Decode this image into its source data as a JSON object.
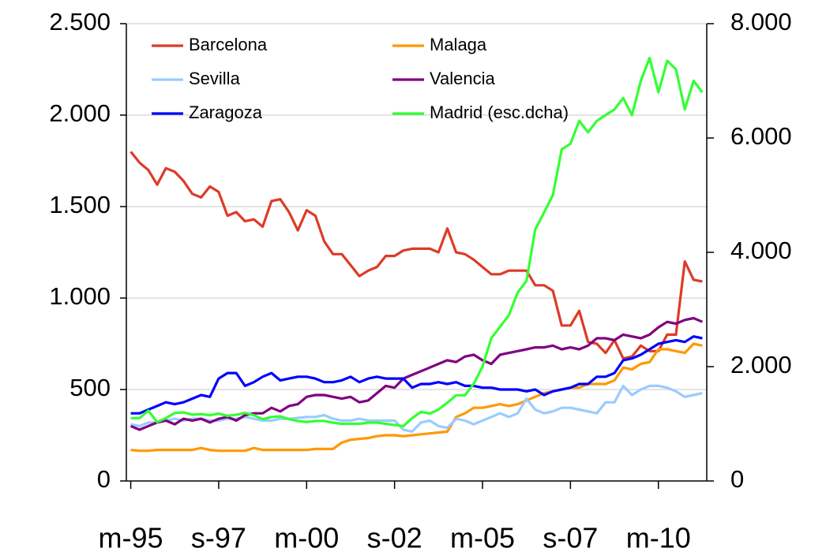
{
  "chart_data": {
    "type": "line",
    "categories": [
      "m-95",
      null,
      null,
      null,
      null,
      null,
      null,
      null,
      null,
      null,
      "s-97",
      null,
      null,
      null,
      null,
      null,
      null,
      null,
      null,
      null,
      "m-00",
      null,
      null,
      null,
      null,
      null,
      null,
      null,
      null,
      null,
      "s-02",
      null,
      null,
      null,
      null,
      null,
      null,
      null,
      null,
      null,
      "m-05",
      null,
      null,
      null,
      null,
      null,
      null,
      null,
      null,
      null,
      "s-07",
      null,
      null,
      null,
      null,
      null,
      null,
      null,
      null,
      null,
      "m-10",
      null,
      null,
      null,
      null,
      null
    ],
    "series": [
      {
        "name": "Barcelona",
        "color": "#dd3b26",
        "values": [
          1800,
          1740,
          1700,
          1620,
          1710,
          1690,
          1640,
          1570,
          1550,
          1610,
          1580,
          1450,
          1470,
          1420,
          1430,
          1390,
          1530,
          1540,
          1470,
          1370,
          1480,
          1450,
          1310,
          1240,
          1240,
          1180,
          1120,
          1150,
          1170,
          1230,
          1230,
          1260,
          1270,
          1270,
          1270,
          1250,
          1380,
          1250,
          1240,
          1210,
          1170,
          1130,
          1130,
          1150,
          1150,
          1150,
          1070,
          1070,
          1040,
          850,
          850,
          930,
          760,
          750,
          700,
          770,
          670,
          680,
          740,
          710,
          710,
          800,
          800,
          1200,
          1100,
          1090
        ]
      },
      {
        "name": "Malaga",
        "color": "#ff9900",
        "values": [
          170,
          165,
          165,
          170,
          170,
          170,
          170,
          170,
          180,
          170,
          165,
          165,
          165,
          165,
          180,
          170,
          170,
          170,
          170,
          170,
          170,
          175,
          175,
          175,
          210,
          225,
          230,
          235,
          245,
          250,
          250,
          245,
          250,
          255,
          260,
          265,
          270,
          350,
          370,
          400,
          400,
          410,
          420,
          410,
          420,
          440,
          460,
          480,
          490,
          500,
          510,
          510,
          530,
          530,
          530,
          550,
          620,
          610,
          640,
          650,
          720,
          720,
          710,
          700,
          750,
          740
        ]
      },
      {
        "name": "Sevilla",
        "color": "#99ccff",
        "values": [
          310,
          300,
          320,
          320,
          330,
          340,
          330,
          340,
          340,
          330,
          330,
          340,
          340,
          350,
          340,
          330,
          330,
          340,
          340,
          345,
          350,
          350,
          360,
          340,
          330,
          330,
          340,
          330,
          330,
          330,
          330,
          280,
          270,
          320,
          330,
          300,
          290,
          340,
          330,
          310,
          330,
          350,
          370,
          350,
          370,
          450,
          390,
          370,
          380,
          400,
          400,
          390,
          380,
          370,
          430,
          430,
          520,
          470,
          500,
          520,
          520,
          510,
          490,
          460,
          470,
          480
        ]
      },
      {
        "name": "Valencia",
        "color": "#800080",
        "values": [
          300,
          280,
          300,
          320,
          330,
          310,
          340,
          330,
          340,
          320,
          340,
          350,
          330,
          360,
          370,
          370,
          400,
          380,
          410,
          420,
          460,
          470,
          470,
          460,
          450,
          460,
          430,
          440,
          480,
          520,
          510,
          560,
          580,
          600,
          620,
          640,
          660,
          650,
          680,
          690,
          660,
          640,
          690,
          700,
          710,
          720,
          730,
          730,
          740,
          720,
          730,
          720,
          740,
          780,
          780,
          770,
          800,
          790,
          780,
          800,
          840,
          870,
          860,
          880,
          890,
          870
        ]
      },
      {
        "name": "Zaragoza",
        "color": "#0000ff",
        "values": [
          370,
          370,
          390,
          410,
          430,
          420,
          430,
          450,
          470,
          460,
          560,
          590,
          590,
          520,
          540,
          570,
          590,
          550,
          560,
          570,
          570,
          560,
          540,
          540,
          550,
          570,
          540,
          560,
          570,
          560,
          560,
          560,
          510,
          530,
          530,
          540,
          530,
          540,
          520,
          520,
          510,
          510,
          500,
          500,
          500,
          490,
          500,
          470,
          490,
          500,
          510,
          530,
          530,
          570,
          570,
          590,
          660,
          670,
          690,
          720,
          750,
          760,
          770,
          760,
          790,
          780
        ]
      },
      {
        "name": "Madrid (esc.dcha)",
        "color": "#33ff33",
        "axis": "y2",
        "values": [
          1100,
          1100,
          1230,
          1030,
          1100,
          1190,
          1200,
          1160,
          1170,
          1150,
          1180,
          1140,
          1160,
          1190,
          1150,
          1080,
          1120,
          1130,
          1080,
          1050,
          1030,
          1050,
          1050,
          1020,
          1000,
          1000,
          1000,
          1020,
          1020,
          1000,
          980,
          960,
          1100,
          1210,
          1180,
          1250,
          1370,
          1500,
          1500,
          1700,
          2000,
          2500,
          2700,
          2900,
          3300,
          3500,
          4400,
          4700,
          5000,
          5800,
          5900,
          6300,
          6100,
          6300,
          6400,
          6500,
          6700,
          6400,
          7000,
          7400,
          6800,
          7350,
          7200,
          6500,
          7000,
          6800
        ]
      }
    ],
    "ylim": [
      0,
      2500
    ],
    "yticks": [
      0,
      500,
      {
        "value": 1000,
        "label": "1.000"
      },
      {
        "value": 1500,
        "label": "1.500"
      },
      {
        "value": 2000,
        "label": "2.000"
      },
      {
        "value": 2500,
        "label": "2.500"
      }
    ],
    "y2lim": [
      0,
      8000
    ],
    "y2ticks": [
      0,
      {
        "value": 2000,
        "label": "2.000"
      },
      {
        "value": 4000,
        "label": "4.000"
      },
      {
        "value": 6000,
        "label": "6.000"
      },
      {
        "value": 8000,
        "label": "8.000"
      }
    ],
    "grid": true,
    "legend": "top-left"
  }
}
